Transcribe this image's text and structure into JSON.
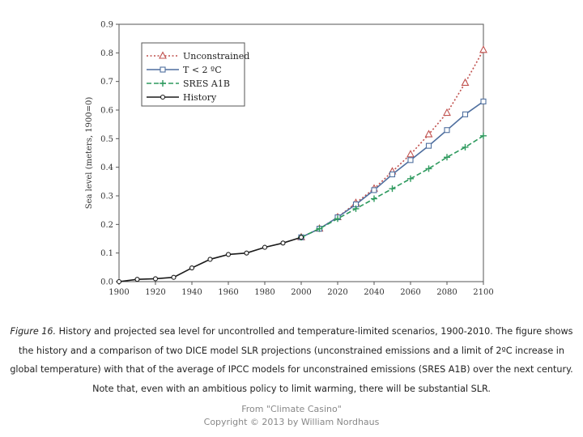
{
  "chart_data": {
    "type": "line",
    "title": "",
    "xlabel": "",
    "ylabel": "Sea level (meters, 1900=0)",
    "xlim": [
      1900,
      2100
    ],
    "ylim": [
      0,
      0.9
    ],
    "x_ticks": [
      "1900",
      "1920",
      "1940",
      "1960",
      "1980",
      "2000",
      "2020",
      "2040",
      "2060",
      "2080",
      "2100"
    ],
    "y_ticks": [
      "0.0",
      "0.1",
      "0.2",
      "0.3",
      "0.4",
      "0.5",
      "0.6",
      "0.7",
      "0.8",
      "0.9"
    ],
    "grid": false,
    "legend_position": "top-left",
    "series": [
      {
        "name": "Unconstrained",
        "color": "#c0504d",
        "dash": "dotted",
        "marker": "triangle",
        "x": [
          2000,
          2010,
          2020,
          2030,
          2040,
          2050,
          2060,
          2070,
          2080,
          2090,
          2100
        ],
        "y": [
          0.155,
          0.185,
          0.225,
          0.275,
          0.325,
          0.385,
          0.445,
          0.515,
          0.59,
          0.695,
          0.81
        ]
      },
      {
        "name": "T < 2 ºC",
        "color": "#4f6f9f",
        "dash": "solid",
        "marker": "square",
        "x": [
          2000,
          2010,
          2020,
          2030,
          2040,
          2050,
          2060,
          2070,
          2080,
          2090,
          2100
        ],
        "y": [
          0.155,
          0.185,
          0.225,
          0.27,
          0.32,
          0.375,
          0.425,
          0.475,
          0.53,
          0.585,
          0.63
        ]
      },
      {
        "name": "SRES A1B",
        "color": "#2e9a5e",
        "dash": "dashed",
        "marker": "plus",
        "x": [
          2000,
          2010,
          2020,
          2030,
          2040,
          2050,
          2060,
          2070,
          2080,
          2090,
          2100
        ],
        "y": [
          0.155,
          0.185,
          0.22,
          0.255,
          0.29,
          0.325,
          0.36,
          0.395,
          0.435,
          0.47,
          0.51
        ]
      },
      {
        "name": "History",
        "color": "#1a1a1a",
        "dash": "solid",
        "marker": "circle",
        "x": [
          1900,
          1910,
          1920,
          1930,
          1940,
          1950,
          1960,
          1970,
          1980,
          1990,
          2000
        ],
        "y": [
          0.0,
          0.008,
          0.01,
          0.015,
          0.048,
          0.078,
          0.095,
          0.1,
          0.12,
          0.135,
          0.155
        ]
      }
    ]
  },
  "caption": {
    "lead": "Figure 16.",
    "text": " History and projected sea level for uncontrolled and temperature-limited scenarios, 1900-2010. The figure shows the history and a comparison of two DICE model SLR projections (unconstrained emissions and a limit of 2ºC increase in global temperature) with that of the average of IPCC models for unconstrained emissions (SRES A1B) over the next century. Note that, even with an ambitious policy to limit warming, there will be substantial SLR."
  },
  "credit": {
    "line1": "From \"Climate Casino\"",
    "line2": "Copyright © 2013 by William Nordhaus"
  }
}
